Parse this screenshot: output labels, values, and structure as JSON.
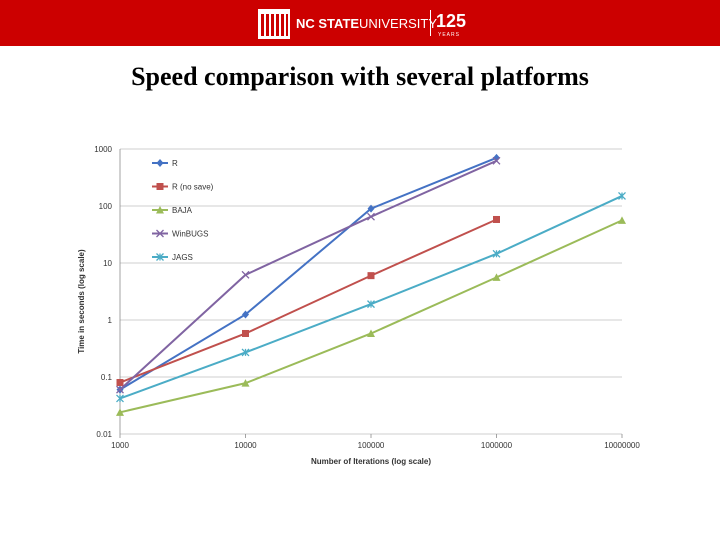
{
  "header": {
    "brand_line1": "NC STATE",
    "brand_line2": "UNIVERSITY",
    "anniversary_number": "125",
    "anniversary_word": "YEARS",
    "colors": {
      "banner": "#cc0000",
      "text": "#ffffff"
    },
    "logo_icon": "belltower-icon"
  },
  "slide": {
    "title": "Speed comparison with several platforms"
  },
  "chart_data": {
    "type": "line",
    "x_scale": "log",
    "y_scale": "log",
    "x": [
      1000,
      10000,
      100000,
      1000000,
      10000000
    ],
    "x_tick_labels": [
      "1000",
      "10000",
      "100000",
      "1000000",
      "10000000"
    ],
    "y_ticks": [
      0.01,
      0.1,
      1,
      10,
      100,
      1000
    ],
    "y_tick_labels": [
      "0.01",
      "0.1",
      "1",
      "10",
      "100",
      "1000"
    ],
    "xlim": [
      1000,
      10000000
    ],
    "ylim": [
      0.01,
      1000
    ],
    "xlabel": "Number of Iterations (log scale)",
    "ylabel": "Time in seconds (log scale)",
    "grid": "horizontal",
    "legend_position": "top-left",
    "series": [
      {
        "name": "R",
        "marker": "diamond",
        "color": "#4472c4",
        "values": [
          0.06,
          1.25,
          90,
          700,
          null
        ]
      },
      {
        "name": "R (no save)",
        "marker": "square",
        "color": "#c0504d",
        "values": [
          0.08,
          0.58,
          6,
          58,
          null
        ]
      },
      {
        "name": "BAJA",
        "marker": "triangle",
        "color": "#9bbb59",
        "values": [
          0.024,
          0.078,
          0.58,
          5.6,
          56
        ]
      },
      {
        "name": "WinBUGS",
        "marker": "x",
        "color": "#8064a2",
        "values": [
          0.06,
          6.2,
          65,
          620,
          null
        ]
      },
      {
        "name": "JAGS",
        "marker": "star",
        "color": "#4bacc6",
        "values": [
          0.042,
          0.27,
          1.9,
          14.5,
          150
        ]
      }
    ]
  }
}
